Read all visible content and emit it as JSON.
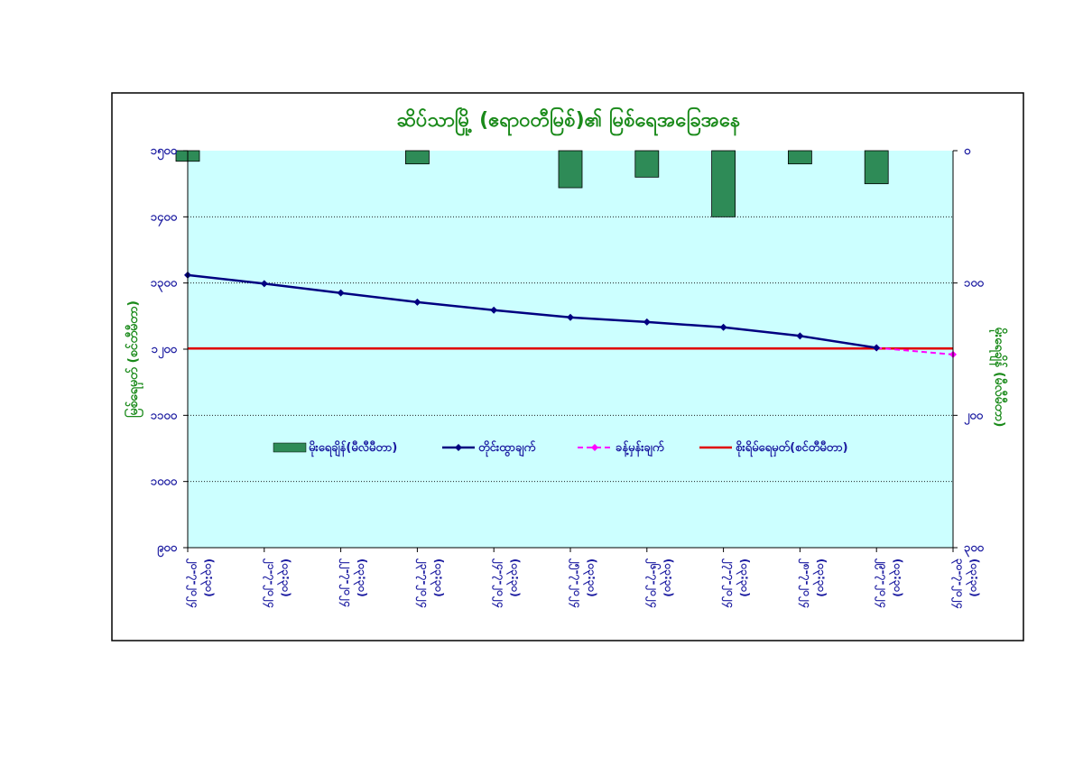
{
  "chart_data": {
    "type": "bar+line",
    "title": "ဆိပ်သာမြို့ (ဧရာဝတီမြစ်)၏ မြစ်ရေအခြေအနေ",
    "ylabel_left": "မြစ်ရေမှတ် (စင်တီမီတာ)",
    "ylabel_right": "မိုးရေချိန် (မီလီမီတာ)",
    "categories": [
      "၂၀-၇-၂၀၂၄ (၀၃:၃၀)",
      "၂၁-၇-၂၀၂၄ (၀၃:၃၀)",
      "၂၂-၇-၂၀၂၄ (၀၃:၃၀)",
      "၂၃-၇-၂၀၂၄ (၀၃:၃၀)",
      "၂၄-၇-၂၀၂၄ (၀၃:၃၀)",
      "၂၅-၇-၂၀၂၄ (၀၃:၃၀)",
      "၂၆-၇-၂၀၂၄ (၀၃:၃၀)",
      "၂၇-၇-၂၀၂၄ (၀၃:၃၀)",
      "၂၈-၇-၂၀၂၄ (၀၃:၃၀)",
      "၂၉-၇-၂၀၂၄ (၀၃:၃၀)",
      "၃၀-၇-၂၀၂၄ (၀၃:၃၀)"
    ],
    "left_axis": {
      "min": 900,
      "max": 1500,
      "step": 100,
      "tick_labels": [
        "၉၀၀",
        "၁၀၀၀",
        "၁၁၀၀",
        "၁၂၀၀",
        "၁၃၀၀",
        "၁၄၀၀",
        "၁၅၀၀"
      ]
    },
    "right_axis": {
      "min": 0,
      "max": 300,
      "step": 100,
      "inverted": true,
      "tick_labels": [
        "၀",
        "၁၀၀",
        "၂၀၀",
        "၃၀၀"
      ]
    },
    "series": [
      {
        "name": "မိုးရေချိန်(မီလီမီတာ)",
        "kind": "bar",
        "axis": "right",
        "color": "#2e8b57",
        "values": [
          8,
          null,
          null,
          10,
          null,
          28,
          20,
          50,
          10,
          25,
          null
        ]
      },
      {
        "name": "တိုင်းထွာချက်",
        "kind": "line",
        "axis": "left",
        "color": "#000080",
        "values": [
          1312,
          1299,
          1285,
          1271,
          1259,
          1248,
          1241,
          1233,
          1220,
          1202,
          null
        ]
      },
      {
        "name": "ခန့်မှန်းချက်",
        "kind": "dashed-line",
        "axis": "left",
        "color": "#ff00ff",
        "values": [
          null,
          null,
          null,
          null,
          null,
          null,
          null,
          null,
          null,
          1202,
          1192
        ]
      },
      {
        "name": "စိုးရိမ်ရေမှတ်(စင်တီမီတာ)",
        "kind": "hline",
        "axis": "left",
        "color": "#e00000",
        "value": 1201
      }
    ],
    "grid": "horizontal dotted",
    "legend": "inside-center"
  },
  "colors": {
    "plot_bg": "#ccffff",
    "bar": "#2e8b57",
    "observed": "#000080",
    "forecast": "#ff00ff",
    "danger": "#e00000",
    "title": "#1a8a1a",
    "ticks": "#1a1aa0"
  }
}
